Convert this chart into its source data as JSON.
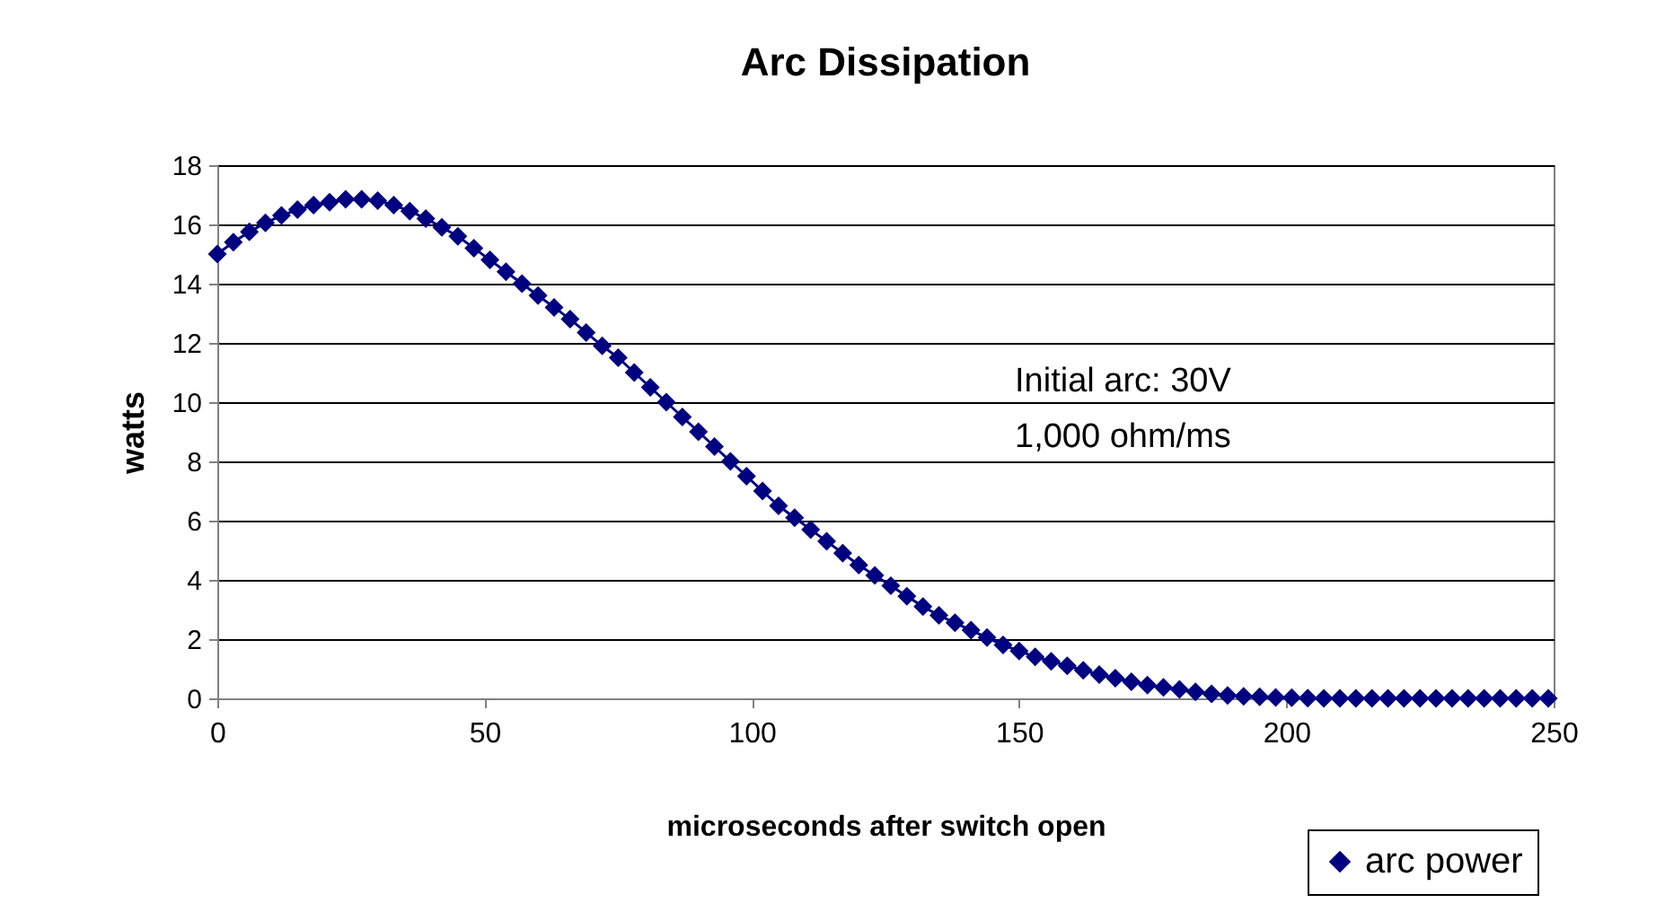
{
  "chart_data": {
    "type": "line",
    "title": "Arc  Dissipation",
    "xlabel": "microseconds after switch open",
    "ylabel": "watts",
    "annotations": [
      "Initial arc: 30V",
      "1,000 ohm/ms"
    ],
    "x": [
      0,
      3,
      6,
      9,
      12,
      15,
      18,
      21,
      24,
      27,
      30,
      33,
      36,
      39,
      42,
      45,
      48,
      51,
      54,
      57,
      60,
      63,
      66,
      69,
      72,
      75,
      78,
      81,
      84,
      87,
      90,
      93,
      96,
      99,
      102,
      105,
      108,
      111,
      114,
      117,
      120,
      123,
      126,
      129,
      132,
      135,
      138,
      141,
      144,
      147,
      150,
      153,
      156,
      159,
      162,
      165,
      168,
      171,
      174,
      177,
      180,
      183,
      186,
      189,
      192,
      195,
      198,
      201,
      204,
      207,
      210,
      213,
      216,
      219,
      222,
      225,
      228,
      231,
      234,
      237,
      240,
      243,
      246,
      249
    ],
    "series": [
      {
        "name": "arc power",
        "color": "#000080",
        "values": [
          15.0,
          15.4,
          15.75,
          16.05,
          16.3,
          16.5,
          16.65,
          16.75,
          16.85,
          16.85,
          16.8,
          16.65,
          16.45,
          16.2,
          15.9,
          15.6,
          15.2,
          14.8,
          14.4,
          14.0,
          13.6,
          13.2,
          12.8,
          12.35,
          11.9,
          11.5,
          11.0,
          10.5,
          10.0,
          9.5,
          9.0,
          8.5,
          8.0,
          7.5,
          7.0,
          6.5,
          6.1,
          5.7,
          5.3,
          4.9,
          4.5,
          4.15,
          3.8,
          3.45,
          3.1,
          2.8,
          2.55,
          2.3,
          2.05,
          1.8,
          1.6,
          1.4,
          1.25,
          1.1,
          0.95,
          0.8,
          0.68,
          0.56,
          0.45,
          0.37,
          0.3,
          0.22,
          0.15,
          0.1,
          0.07,
          0.05,
          0.03,
          0.02,
          0.01,
          0,
          0,
          0,
          0,
          0,
          0,
          0,
          0,
          0,
          0,
          0,
          0,
          0,
          0,
          0
        ]
      }
    ],
    "xlim": [
      0,
      250
    ],
    "xticks": [
      0,
      50,
      100,
      150,
      200,
      250
    ],
    "ylim": [
      0,
      18
    ],
    "yticks": [
      0,
      2,
      4,
      6,
      8,
      10,
      12,
      14,
      16,
      18
    ],
    "grid": "y",
    "legend": "bottom right",
    "marker": "diamond",
    "line_style": "solid"
  }
}
